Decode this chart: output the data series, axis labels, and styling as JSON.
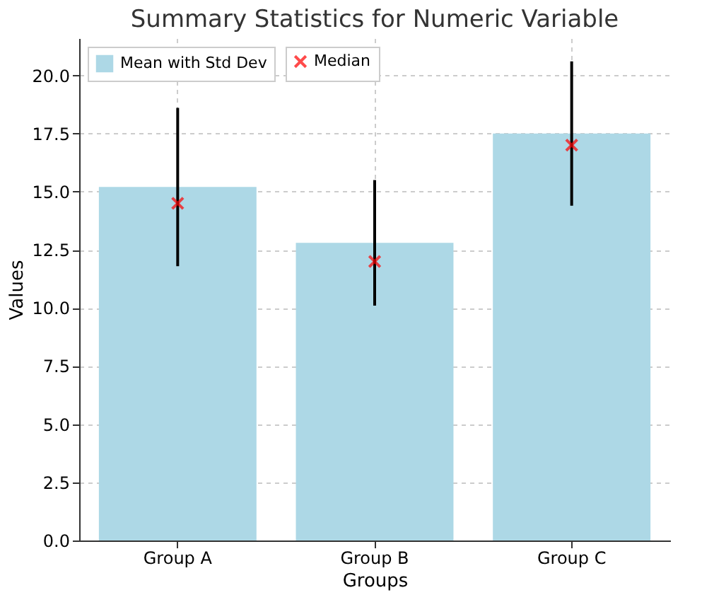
{
  "chart_data": {
    "type": "bar",
    "title": "Summary Statistics for Numeric Variable",
    "xlabel": "Groups",
    "ylabel": "Values",
    "categories": [
      "Group A",
      "Group B",
      "Group C"
    ],
    "series": [
      {
        "name": "Mean with Std Dev",
        "color": "#add8e6",
        "values": [
          15.2,
          12.8,
          17.5
        ],
        "errors": [
          3.4,
          2.7,
          3.1
        ]
      },
      {
        "name": "Median",
        "type": "scatter",
        "color": "#ff0000",
        "x": [
          "Group A",
          "Group B",
          "Group C"
        ],
        "values": [
          14.5,
          12.0,
          17.0
        ]
      }
    ],
    "ylim": [
      0,
      21.6
    ],
    "yticks": [
      {
        "value": 0,
        "label": "0.0"
      },
      {
        "value": 2.5,
        "label": "2.5"
      },
      {
        "value": 5,
        "label": "5.0"
      },
      {
        "value": 7.5,
        "label": "7.5"
      },
      {
        "value": 10,
        "label": "10.0"
      },
      {
        "value": 12.5,
        "label": "12.5"
      },
      {
        "value": 15,
        "label": "15.0"
      },
      {
        "value": 17.5,
        "label": "17.5"
      },
      {
        "value": 20,
        "label": "20.0"
      }
    ],
    "grid": true,
    "legend": "top left",
    "marker": "cross"
  }
}
